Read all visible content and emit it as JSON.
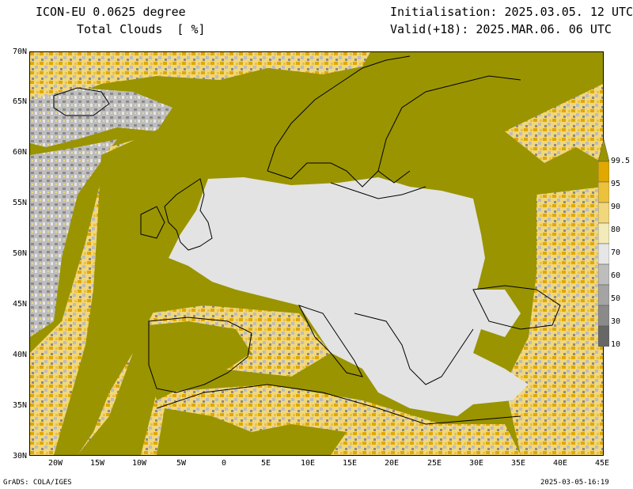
{
  "header": {
    "model_name": "ICON-EU 0.0625 degree",
    "variable": "Total Clouds  [ %]",
    "init_time": "Initialisation: 2025.03.05. 12 UTC",
    "valid_time": "Valid(+18): 2025.MAR.06. 06 UTC"
  },
  "map": {
    "lat_labels": [
      "70N",
      "65N",
      "60N",
      "55N",
      "50N",
      "45N",
      "40N",
      "35N",
      "30N"
    ],
    "lon_labels": [
      "20W",
      "15W",
      "10W",
      "5W",
      "0",
      "5E",
      "10E",
      "15E",
      "20E",
      "25E",
      "30E",
      "35E",
      "40E",
      "45E"
    ],
    "colors": {
      "cloudy": "#9a9400",
      "clear": "#e3e3e3",
      "coast": "#000000"
    }
  },
  "colorbar": {
    "labels": [
      "99.5",
      "95",
      "90",
      "80",
      "70",
      "60",
      "50",
      "30",
      "10"
    ],
    "colors": [
      "#9a9400",
      "#e0a800",
      "#ecc13c",
      "#f1d77c",
      "#f2eab8",
      "#e6e6e6",
      "#bdbdbd",
      "#a4a4a4",
      "#8a8a8a",
      "#676767"
    ]
  },
  "footer": {
    "software": "GrADS: COLA/IGES",
    "timestamp": "2025-03-05-16:19"
  }
}
